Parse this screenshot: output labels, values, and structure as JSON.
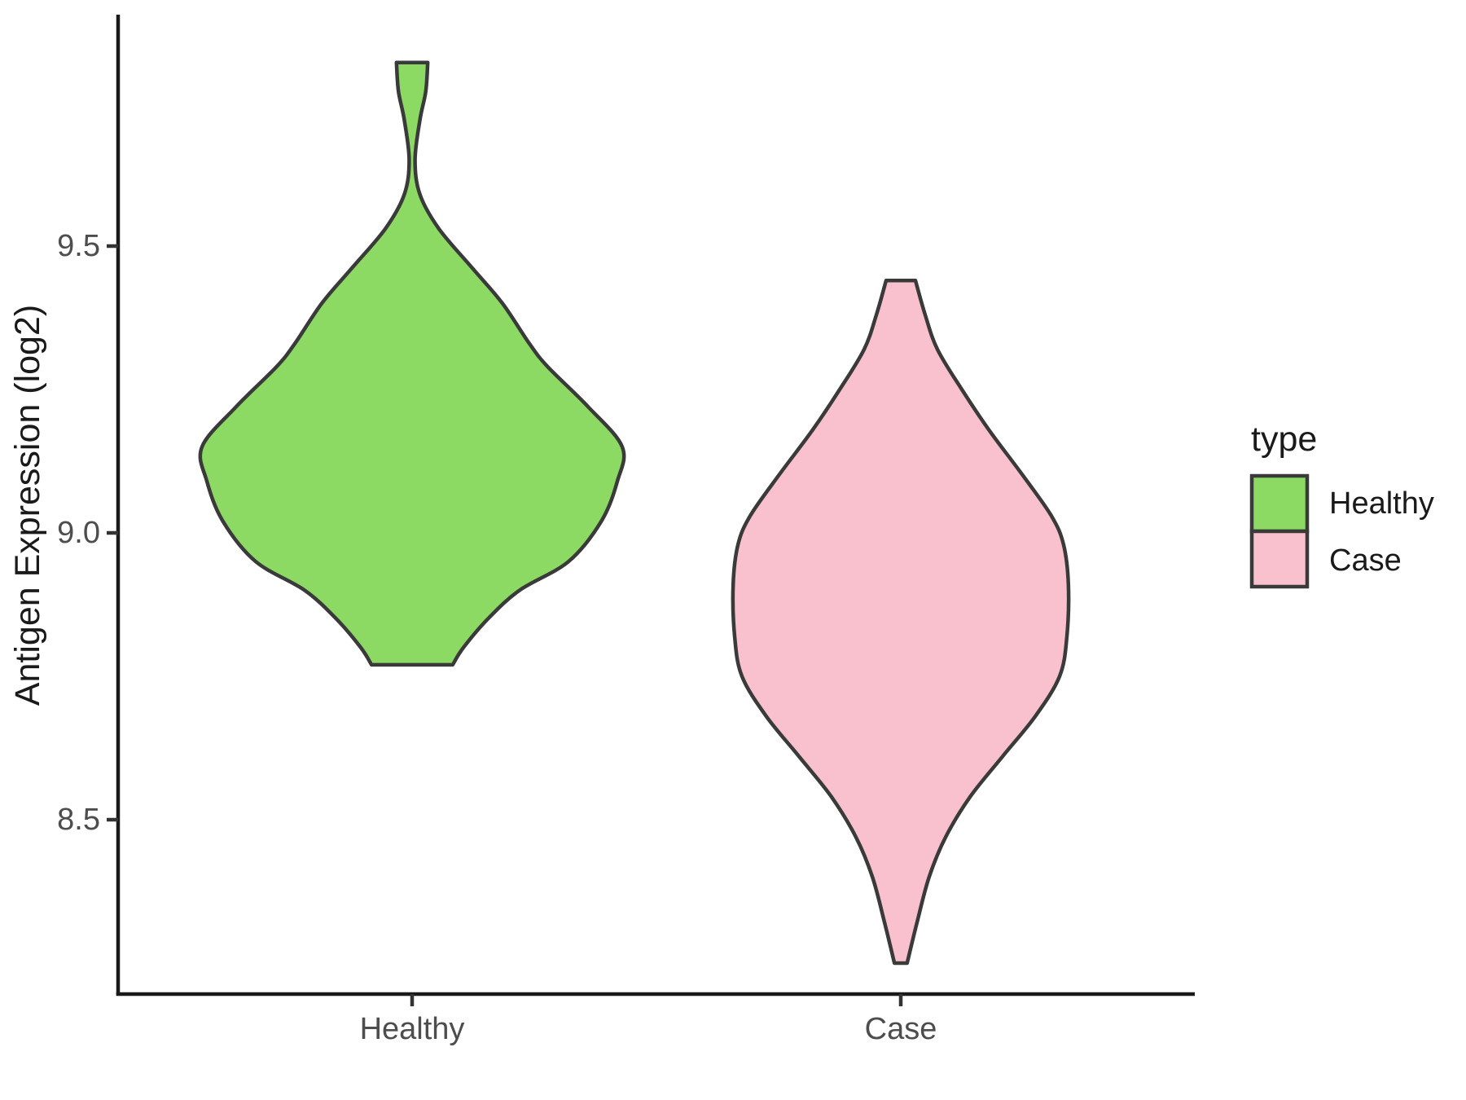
{
  "chart_data": {
    "type": "violin",
    "title": "",
    "xlabel": "",
    "ylabel": "Antigen Expression (log2)",
    "categories": [
      "Healthy",
      "Case"
    ],
    "y_ticks": [
      9.5,
      9.0,
      8.5
    ],
    "y_tick_labels": [
      "9.5",
      "9.0",
      "8.5"
    ],
    "ylim": [
      8.2,
      9.9
    ],
    "grid": "off",
    "background_color": "#FFFFFF",
    "axis_color": "#1A1A1A",
    "tick_label_color": "#4D4D4D",
    "violin_outline_color": "#3A3A3A",
    "legend": {
      "title": "type",
      "position": "right",
      "entries": [
        {
          "label": "Healthy",
          "color": "#8CD964"
        },
        {
          "label": "Case",
          "color": "#F8C1CD"
        }
      ]
    },
    "series": [
      {
        "name": "Healthy",
        "fill": "#8CD964",
        "outline": "#3A3A3A",
        "min_value": 8.77,
        "max_value": 9.82,
        "peak_density_value": 9.15,
        "profile": [
          [
            9.82,
            0.032
          ],
          [
            9.77,
            0.028
          ],
          [
            9.72,
            0.016
          ],
          [
            9.65,
            0.006
          ],
          [
            9.59,
            0.016
          ],
          [
            9.53,
            0.055
          ],
          [
            9.46,
            0.125
          ],
          [
            9.4,
            0.185
          ],
          [
            9.33,
            0.24
          ],
          [
            9.29,
            0.277
          ],
          [
            9.22,
            0.36
          ],
          [
            9.15,
            0.43
          ],
          [
            9.09,
            0.42
          ],
          [
            9.02,
            0.387
          ],
          [
            8.95,
            0.32
          ],
          [
            8.9,
            0.22
          ],
          [
            8.85,
            0.155
          ],
          [
            8.8,
            0.105
          ],
          [
            8.77,
            0.083
          ]
        ]
      },
      {
        "name": "Case",
        "fill": "#F8C1CD",
        "outline": "#3A3A3A",
        "min_value": 8.25,
        "max_value": 9.44,
        "peak_density_value": 8.91,
        "profile": [
          [
            9.44,
            0.03
          ],
          [
            9.38,
            0.05
          ],
          [
            9.32,
            0.075
          ],
          [
            9.25,
            0.125
          ],
          [
            9.18,
            0.18
          ],
          [
            9.1,
            0.25
          ],
          [
            9.03,
            0.308
          ],
          [
            8.98,
            0.333
          ],
          [
            8.91,
            0.343
          ],
          [
            8.82,
            0.34
          ],
          [
            8.75,
            0.325
          ],
          [
            8.68,
            0.275
          ],
          [
            8.61,
            0.208
          ],
          [
            8.54,
            0.142
          ],
          [
            8.47,
            0.092
          ],
          [
            8.4,
            0.058
          ],
          [
            8.32,
            0.033
          ],
          [
            8.25,
            0.013
          ]
        ]
      }
    ]
  }
}
